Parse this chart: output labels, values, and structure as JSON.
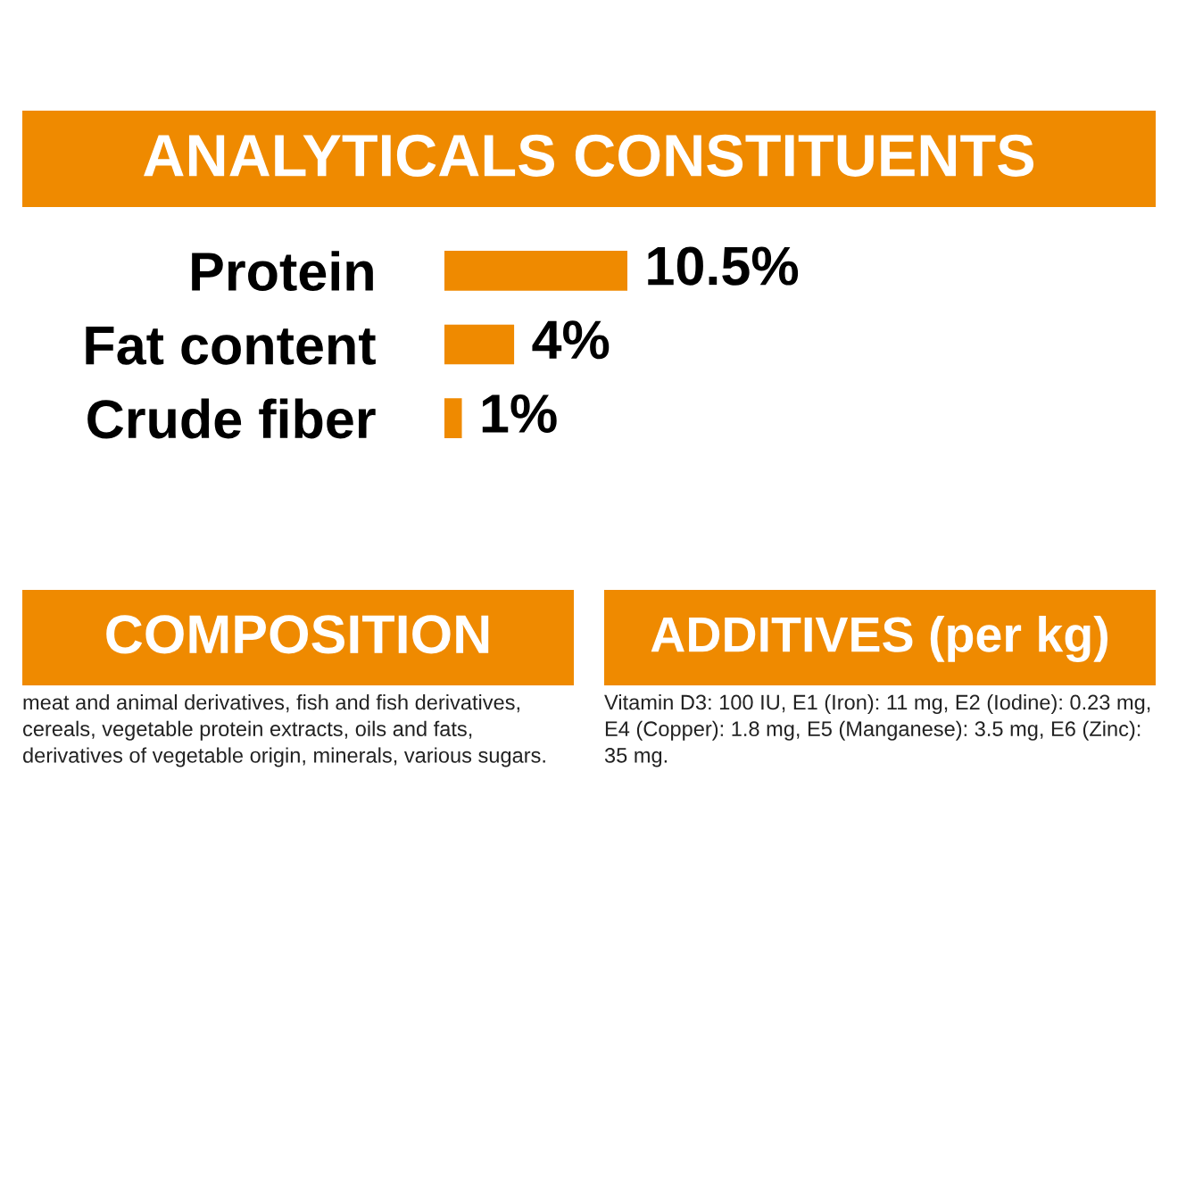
{
  "chart_data": {
    "type": "bar",
    "orientation": "horizontal",
    "title": "ANALYTICALS CONSTITUENTS",
    "categories": [
      "Protein",
      "Fat content",
      "Crude fiber"
    ],
    "values": [
      10.5,
      4,
      1
    ],
    "value_labels": [
      "10.5%",
      "4%",
      "1%"
    ],
    "color": "#ef8a00",
    "annotations": [
      "COMPOSITION",
      "meat and animal derivatives, fish and fish derivatives, cereals, vegetable protein extracts, oils and fats, derivatives of vegetable origin, minerals, various sugars.",
      "ADDITIVES (per kg)",
      "Vitamin D3: 100 IU, E1 (Iron): 11 mg, E2 (Iodine): 0.23 mg, E4 (Copper): 1.8 mg, E5 (Manganese): 3.5 mg, E6 (Zinc): 35 mg."
    ]
  }
}
